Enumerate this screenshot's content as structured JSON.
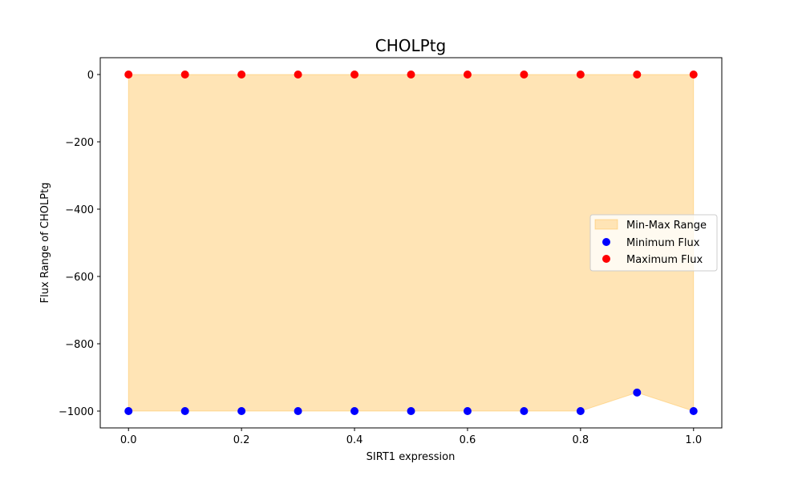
{
  "chart_data": {
    "type": "scatter",
    "title": "CHOLPtg",
    "xlabel": "SIRT1 expression",
    "ylabel": "Flux Range of CHOLPtg",
    "x": [
      0.0,
      0.1,
      0.2,
      0.3,
      0.4,
      0.5,
      0.6,
      0.7,
      0.8,
      0.9,
      1.0
    ],
    "xlim": [
      -0.05,
      1.05
    ],
    "ylim": [
      -1050,
      50
    ],
    "xticks": [
      0.0,
      0.2,
      0.4,
      0.6,
      0.8,
      1.0
    ],
    "xtick_labels": [
      "0.0",
      "0.2",
      "0.4",
      "0.6",
      "0.8",
      "1.0"
    ],
    "yticks": [
      0,
      -200,
      -400,
      -600,
      -800,
      -1000
    ],
    "ytick_labels": [
      "0",
      "−200",
      "−400",
      "−600",
      "−800",
      "−1000"
    ],
    "fill": {
      "name": "Min-Max Range",
      "color": "#ffe4b5",
      "edge_color": "#ffa500"
    },
    "series": [
      {
        "name": "Minimum Flux",
        "color": "#0000ff",
        "values": [
          -1000,
          -1000,
          -1000,
          -1000,
          -1000,
          -1000,
          -1000,
          -1000,
          -1000,
          -945,
          -1000
        ]
      },
      {
        "name": "Maximum Flux",
        "color": "#ff0000",
        "values": [
          0,
          0,
          0,
          0,
          0,
          0,
          0,
          0,
          0,
          0,
          0
        ]
      }
    ],
    "legend": {
      "placement": "right",
      "entries": [
        "Min-Max Range",
        "Minimum Flux",
        "Maximum Flux"
      ]
    },
    "grid": false
  }
}
